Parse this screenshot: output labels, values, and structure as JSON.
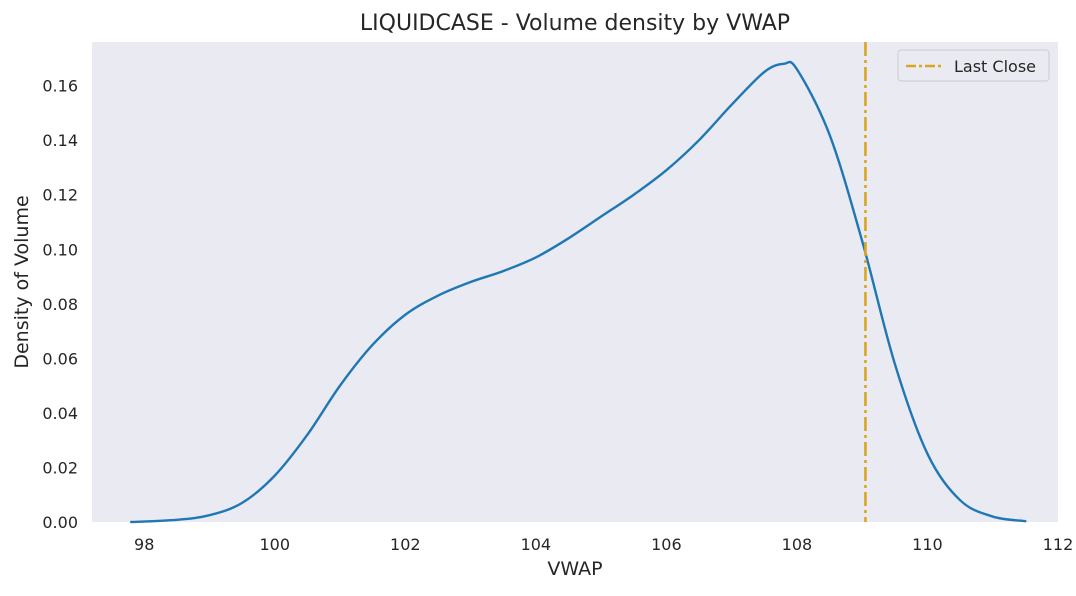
{
  "chart_data": {
    "type": "line",
    "title": "LIQUIDCASE - Volume density by VWAP",
    "xlabel": "VWAP",
    "ylabel": "Density of Volume",
    "xlim": [
      97.2,
      112
    ],
    "ylim": [
      0,
      0.176
    ],
    "x_ticks": [
      98,
      100,
      102,
      104,
      106,
      108,
      110,
      112
    ],
    "y_ticks": [
      0.0,
      0.02,
      0.04,
      0.06,
      0.08,
      0.1,
      0.12,
      0.14,
      0.16
    ],
    "grid": false,
    "legend_position": "top-right",
    "series": [
      {
        "color": "#1f77b4",
        "x": [
          97.8,
          98.5,
          99.0,
          99.5,
          100.0,
          100.5,
          101.0,
          101.5,
          102.0,
          102.5,
          103.0,
          103.5,
          104.0,
          104.5,
          105.0,
          105.5,
          106.0,
          106.5,
          107.0,
          107.5,
          107.8,
          108.0,
          108.5,
          109.0,
          109.5,
          110.0,
          110.5,
          111.0,
          111.5
        ],
        "y": [
          0.0,
          0.0008,
          0.0025,
          0.007,
          0.017,
          0.032,
          0.05,
          0.065,
          0.076,
          0.083,
          0.088,
          0.092,
          0.097,
          0.104,
          0.112,
          0.12,
          0.129,
          0.14,
          0.153,
          0.165,
          0.168,
          0.166,
          0.142,
          0.103,
          0.058,
          0.025,
          0.008,
          0.002,
          0.0003
        ]
      }
    ],
    "reference_lines": [
      {
        "label": "Last Close",
        "x": 109.05,
        "color": "#DAA520",
        "style": "dash-dot"
      }
    ],
    "colors": {
      "plot_background": "#EAEAF2",
      "density_line": "#1f77b4",
      "last_close_line": "#DAA520"
    }
  }
}
